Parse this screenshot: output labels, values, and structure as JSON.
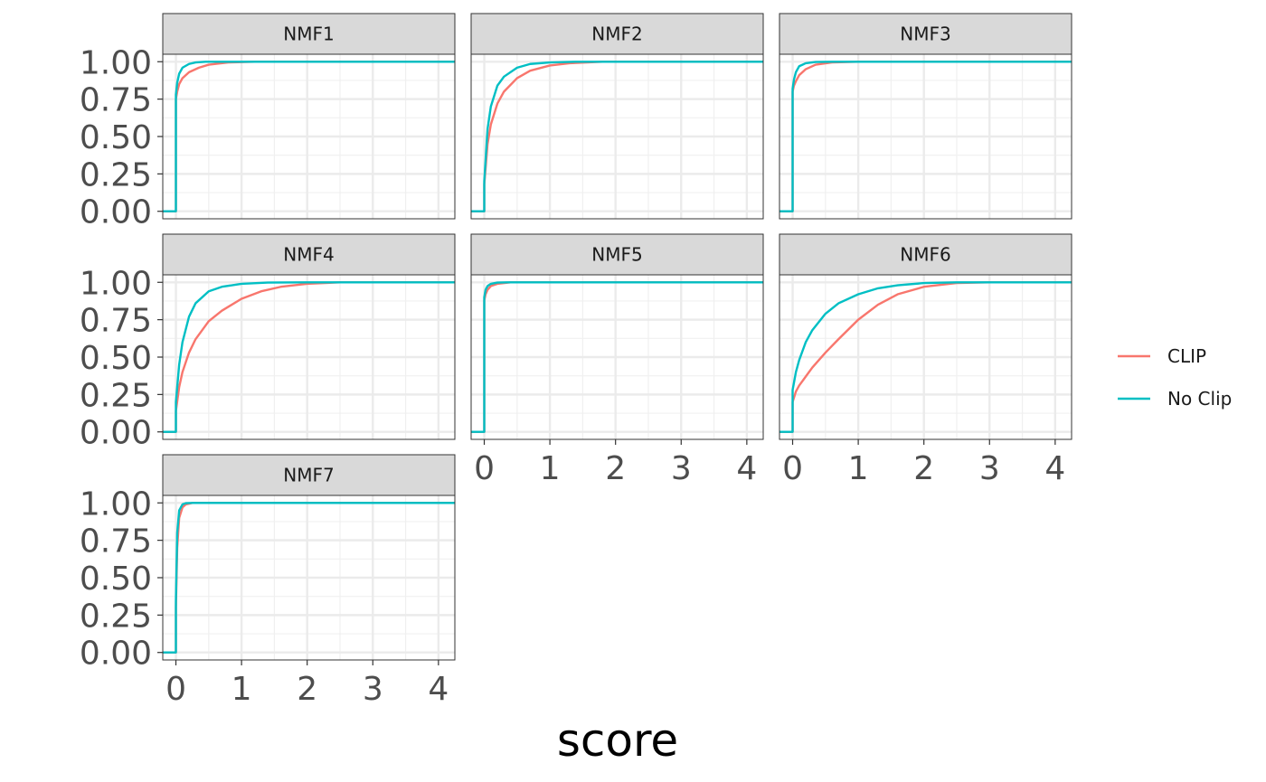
{
  "chart_data": {
    "type": "line",
    "title": "",
    "xlabel": "score",
    "ylabel": "",
    "xlim": [
      -0.2,
      4.25
    ],
    "ylim": [
      -0.05,
      1.05
    ],
    "x_ticks": [
      "0",
      "1",
      "2",
      "3",
      "4"
    ],
    "y_ticks": [
      "0.00",
      "0.25",
      "0.50",
      "0.75",
      "1.00"
    ],
    "grid": true,
    "legend": {
      "position": "right",
      "items": [
        {
          "name": "CLIP",
          "color": "#F8766D"
        },
        {
          "name": "No Clip",
          "color": "#00BFC4"
        }
      ]
    },
    "panels": [
      {
        "title": "NMF1",
        "series": [
          {
            "name": "CLIP",
            "x": [
              -0.2,
              0.0,
              0.0,
              0.02,
              0.05,
              0.1,
              0.2,
              0.35,
              0.5,
              0.8,
              1.2,
              4.25
            ],
            "y": [
              0,
              0,
              0.75,
              0.8,
              0.85,
              0.89,
              0.93,
              0.96,
              0.98,
              0.995,
              1.0,
              1.0
            ]
          },
          {
            "name": "No Clip",
            "x": [
              -0.2,
              0.0,
              0.0,
              0.02,
              0.05,
              0.1,
              0.2,
              0.3,
              0.45,
              0.7,
              4.25
            ],
            "y": [
              0,
              0,
              0.78,
              0.86,
              0.92,
              0.96,
              0.985,
              0.995,
              1.0,
              1.0,
              1.0
            ]
          }
        ]
      },
      {
        "title": "NMF2",
        "series": [
          {
            "name": "CLIP",
            "x": [
              -0.2,
              0.0,
              0.0,
              0.05,
              0.1,
              0.2,
              0.3,
              0.5,
              0.7,
              1.0,
              1.3,
              1.8,
              4.25
            ],
            "y": [
              0,
              0,
              0.18,
              0.45,
              0.58,
              0.72,
              0.8,
              0.89,
              0.94,
              0.975,
              0.99,
              1.0,
              1.0
            ]
          },
          {
            "name": "No Clip",
            "x": [
              -0.2,
              0.0,
              0.0,
              0.05,
              0.1,
              0.2,
              0.3,
              0.5,
              0.7,
              1.0,
              1.4,
              4.25
            ],
            "y": [
              0,
              0,
              0.2,
              0.55,
              0.7,
              0.84,
              0.9,
              0.96,
              0.985,
              0.995,
              1.0,
              1.0
            ]
          }
        ]
      },
      {
        "title": "NMF3",
        "series": [
          {
            "name": "CLIP",
            "x": [
              -0.2,
              0.0,
              0.0,
              0.02,
              0.05,
              0.1,
              0.2,
              0.35,
              0.6,
              1.0,
              4.25
            ],
            "y": [
              0,
              0,
              0.8,
              0.84,
              0.87,
              0.91,
              0.95,
              0.98,
              0.995,
              1.0,
              1.0
            ]
          },
          {
            "name": "No Clip",
            "x": [
              -0.2,
              0.0,
              0.0,
              0.02,
              0.05,
              0.1,
              0.2,
              0.35,
              0.6,
              4.25
            ],
            "y": [
              0,
              0,
              0.82,
              0.88,
              0.93,
              0.97,
              0.99,
              0.998,
              1.0,
              1.0
            ]
          }
        ]
      },
      {
        "title": "NMF4",
        "series": [
          {
            "name": "CLIP",
            "x": [
              -0.2,
              0.0,
              0.0,
              0.05,
              0.1,
              0.2,
              0.3,
              0.5,
              0.7,
              1.0,
              1.3,
              1.6,
              2.0,
              2.5,
              4.25
            ],
            "y": [
              0,
              0,
              0.14,
              0.3,
              0.4,
              0.53,
              0.62,
              0.74,
              0.81,
              0.89,
              0.94,
              0.97,
              0.99,
              1.0,
              1.0
            ]
          },
          {
            "name": "No Clip",
            "x": [
              -0.2,
              0.0,
              0.0,
              0.05,
              0.1,
              0.2,
              0.3,
              0.5,
              0.7,
              1.0,
              1.4,
              2.0,
              4.25
            ],
            "y": [
              0,
              0,
              0.2,
              0.45,
              0.6,
              0.77,
              0.86,
              0.94,
              0.97,
              0.99,
              0.998,
              1.0,
              1.0
            ]
          }
        ]
      },
      {
        "title": "NMF5",
        "series": [
          {
            "name": "CLIP",
            "x": [
              -0.2,
              0.0,
              0.0,
              0.02,
              0.05,
              0.1,
              0.2,
              0.4,
              4.25
            ],
            "y": [
              0,
              0,
              0.88,
              0.92,
              0.95,
              0.975,
              0.99,
              1.0,
              1.0
            ]
          },
          {
            "name": "No Clip",
            "x": [
              -0.2,
              0.0,
              0.0,
              0.02,
              0.05,
              0.1,
              0.2,
              0.35,
              4.25
            ],
            "y": [
              0,
              0,
              0.9,
              0.95,
              0.975,
              0.99,
              0.998,
              1.0,
              1.0
            ]
          }
        ]
      },
      {
        "title": "NMF6",
        "series": [
          {
            "name": "CLIP",
            "x": [
              -0.2,
              0.0,
              0.0,
              0.05,
              0.1,
              0.2,
              0.3,
              0.5,
              0.7,
              1.0,
              1.3,
              1.6,
              2.0,
              2.5,
              3.0,
              4.25
            ],
            "y": [
              0,
              0,
              0.2,
              0.27,
              0.31,
              0.37,
              0.43,
              0.53,
              0.62,
              0.75,
              0.85,
              0.92,
              0.97,
              0.995,
              1.0,
              1.0
            ]
          },
          {
            "name": "No Clip",
            "x": [
              -0.2,
              0.0,
              0.0,
              0.05,
              0.1,
              0.2,
              0.3,
              0.5,
              0.7,
              1.0,
              1.3,
              1.6,
              2.0,
              2.5,
              4.25
            ],
            "y": [
              0,
              0,
              0.28,
              0.4,
              0.48,
              0.6,
              0.68,
              0.79,
              0.86,
              0.92,
              0.96,
              0.98,
              0.995,
              1.0,
              1.0
            ]
          }
        ]
      },
      {
        "title": "NMF7",
        "series": [
          {
            "name": "CLIP",
            "x": [
              -0.2,
              0.0,
              0.0,
              0.02,
              0.05,
              0.1,
              0.15,
              0.25,
              4.25
            ],
            "y": [
              0,
              0,
              0.3,
              0.7,
              0.9,
              0.97,
              0.99,
              1.0,
              1.0
            ]
          },
          {
            "name": "No Clip",
            "x": [
              -0.2,
              0.0,
              0.0,
              0.02,
              0.05,
              0.1,
              0.15,
              0.25,
              4.25
            ],
            "y": [
              0,
              0,
              0.35,
              0.8,
              0.95,
              0.99,
              0.998,
              1.0,
              1.0
            ]
          }
        ]
      }
    ]
  }
}
